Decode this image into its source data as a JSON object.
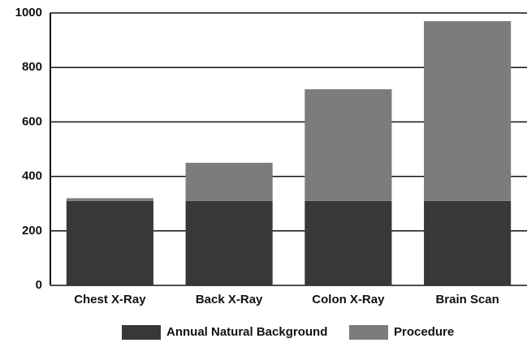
{
  "chart_data": {
    "type": "stacked_bar",
    "categories": [
      "Chest X-Ray",
      "Back X-Ray",
      "Colon X-Ray",
      "Brain Scan"
    ],
    "series": [
      {
        "name": "Annual Natural Background",
        "color": "#383838",
        "values": [
          310,
          310,
          310,
          310
        ]
      },
      {
        "name": "Procedure",
        "color": "#7c7c7c",
        "values": [
          10,
          140,
          410,
          660
        ]
      }
    ],
    "ylim": [
      0,
      1000
    ],
    "yticks": [
      0,
      200,
      400,
      600,
      800,
      1000
    ],
    "grid": true,
    "legend": "bottom"
  }
}
